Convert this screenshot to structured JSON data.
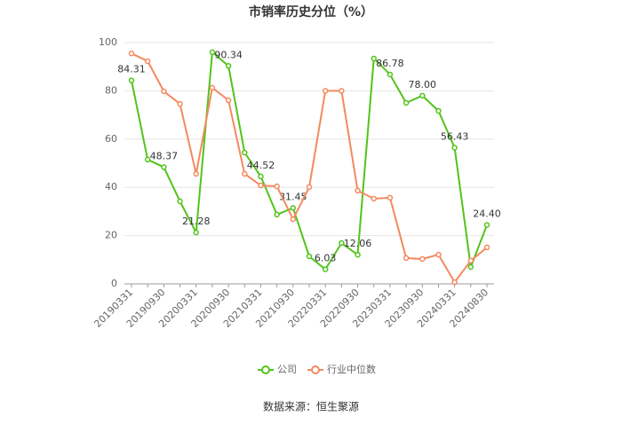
{
  "chart_data": {
    "type": "line",
    "title": "市销率历史分位（%）",
    "categories": [
      "20190331",
      null,
      "20190930",
      null,
      "20200331",
      null,
      "20200930",
      null,
      "20210331",
      null,
      "20210930",
      null,
      "20220331",
      null,
      "20220930",
      null,
      "20230331",
      null,
      "20230930",
      null,
      "20240331",
      null,
      "20240830"
    ],
    "series": [
      {
        "name": "公司",
        "color": "#52c41a",
        "values": [
          84.31,
          51.5,
          48.37,
          34.2,
          21.28,
          96,
          90.34,
          54.4,
          44.52,
          28.7,
          31.45,
          11.4,
          6.03,
          16.9,
          12.06,
          93.4,
          86.78,
          75,
          78.0,
          71.7,
          56.43,
          7,
          24.4
        ],
        "value_labels": [
          "84.31",
          null,
          "48.37",
          null,
          "21.28",
          null,
          "90.34",
          null,
          "44.52",
          null,
          "31.45",
          null,
          "6.03",
          null,
          "12.06",
          null,
          "86.78",
          null,
          "78.00",
          null,
          "56.43",
          null,
          "24.40"
        ]
      },
      {
        "name": "行业中位数",
        "color": "#f4895f",
        "values": [
          95.5,
          92.3,
          79.8,
          74.6,
          45.6,
          81.3,
          76.1,
          45.6,
          40.8,
          40.4,
          26.8,
          40.1,
          80,
          80,
          38.6,
          35.3,
          35.7,
          10.7,
          10.3,
          12.1,
          0.7,
          9.6,
          15.1
        ]
      }
    ],
    "ylim": [
      0,
      100
    ],
    "yticks": [
      0,
      20,
      40,
      60,
      80,
      100
    ],
    "grid": true,
    "legend": "bottom",
    "source": "数据来源：恒生聚源"
  }
}
